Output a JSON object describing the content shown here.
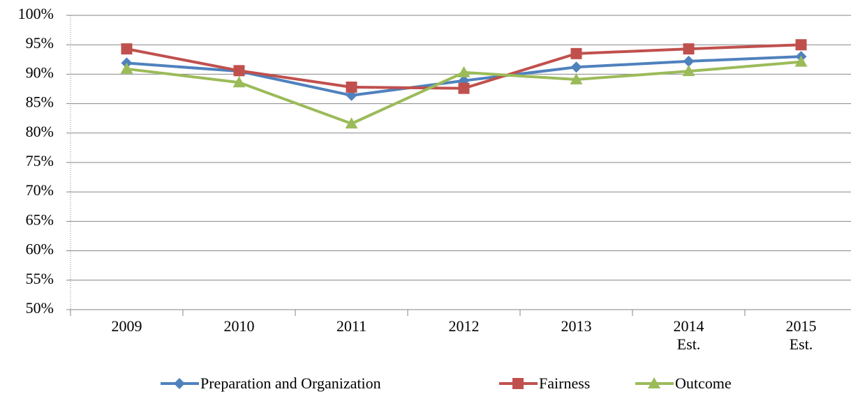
{
  "chart_data": {
    "type": "line",
    "categories": [
      "2009",
      "2010",
      "2011",
      "2012",
      "2013",
      "2014 Est.",
      "2015 Est."
    ],
    "series": [
      {
        "name": "Preparation and Organization",
        "color": "#4f81bd",
        "marker": "diamond",
        "values": [
          91.9,
          90.5,
          86.4,
          88.9,
          91.2,
          92.2,
          93.0
        ]
      },
      {
        "name": "Fairness",
        "color": "#c0504d",
        "marker": "square",
        "values": [
          94.3,
          90.6,
          87.8,
          87.6,
          93.5,
          94.3,
          95.0
        ]
      },
      {
        "name": "Outcome",
        "color": "#9bbb59",
        "marker": "triangle",
        "values": [
          90.9,
          88.6,
          81.6,
          90.3,
          89.1,
          90.5,
          92.1
        ]
      }
    ],
    "ylim": [
      50,
      100
    ],
    "yticks": [
      {
        "value": 50,
        "label": "50%"
      },
      {
        "value": 55,
        "label": "55%"
      },
      {
        "value": 60,
        "label": "60%"
      },
      {
        "value": 65,
        "label": "65%"
      },
      {
        "value": 70,
        "label": "70%"
      },
      {
        "value": 75,
        "label": "75%"
      },
      {
        "value": 80,
        "label": "80%"
      },
      {
        "value": 85,
        "label": "85%"
      },
      {
        "value": 90,
        "label": "90%"
      },
      {
        "value": 95,
        "label": "95%"
      },
      {
        "value": 100,
        "label": "100%"
      }
    ],
    "grid": true,
    "legend": "bottom"
  }
}
